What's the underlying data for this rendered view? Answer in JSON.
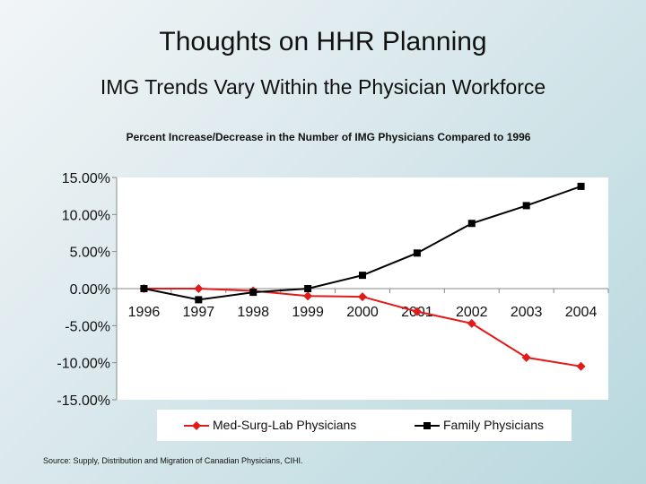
{
  "slide": {
    "title": "Thoughts on HHR Planning",
    "subtitle": "IMG Trends Vary Within the Physician Workforce",
    "source": "Source: Supply, Distribution and Migration of Canadian Physicians, CIHI."
  },
  "chart_data": {
    "type": "line",
    "title": "Percent Increase/Decrease in the Number of IMG Physicians Compared to 1996",
    "xlabel": "",
    "ylabel": "",
    "categories": [
      "1996",
      "1997",
      "1998",
      "1999",
      "2000",
      "2001",
      "2002",
      "2003",
      "2004"
    ],
    "ylim": [
      -15,
      15
    ],
    "yticks": [
      15,
      10,
      5,
      0,
      -5,
      -10,
      -15
    ],
    "ytick_labels": [
      "15.00%",
      "10.00%",
      "5.00%",
      "0.00%",
      "-5.00%",
      "-10.00%",
      "-15.00%"
    ],
    "grid": false,
    "legend_position": "bottom",
    "series": [
      {
        "name": "Med-Surg-Lab Physicians",
        "color": "#e31a1a",
        "marker": "diamond",
        "values": [
          0.0,
          0.0,
          -0.3,
          -1.0,
          -1.1,
          -3.1,
          -4.7,
          -9.3,
          -10.5
        ]
      },
      {
        "name": "Family Physicians",
        "color": "#000000",
        "marker": "square",
        "values": [
          0.0,
          -1.5,
          -0.5,
          0.0,
          1.8,
          4.8,
          8.8,
          11.2,
          13.8
        ]
      }
    ]
  },
  "colors": {
    "plot_background": "#ffffff",
    "axis": "#888888"
  }
}
